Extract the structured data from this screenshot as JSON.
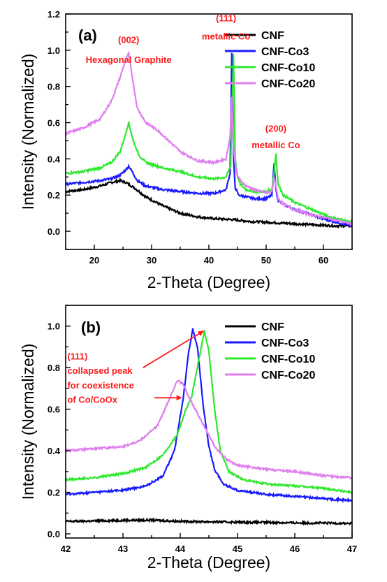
{
  "chart_data": [
    {
      "type": "line",
      "panel_label": "(a)",
      "xlabel": "2-Theta (Degree)",
      "ylabel": "Intensity (Normalized)",
      "xlim": [
        15,
        65
      ],
      "ylim": [
        -0.1,
        1.2
      ],
      "xticks": [
        20,
        30,
        40,
        50,
        60
      ],
      "yticks": [
        0.0,
        0.2,
        0.4,
        0.6,
        0.8,
        1.0,
        1.2
      ],
      "legend_position": "top-right",
      "annotations": [
        {
          "text": "(002)",
          "x": 26.0,
          "y": 1.04
        },
        {
          "text": "Hexagonal Graphite",
          "x": 26.0,
          "y": 0.93
        },
        {
          "text": "(111)",
          "x": 43.0,
          "y": 1.16
        },
        {
          "text": "metallic Co",
          "x": 43.0,
          "y": 1.06
        },
        {
          "text": "(200)",
          "x": 51.7,
          "y": 0.55
        },
        {
          "text": "metallic Co",
          "x": 51.7,
          "y": 0.46
        }
      ],
      "series": [
        {
          "name": "CNF",
          "color": "#000000",
          "x": [
            15,
            18,
            21,
            23,
            24.5,
            25.5,
            27,
            29,
            32,
            35,
            38,
            41,
            44,
            47,
            50,
            53,
            56,
            59,
            62,
            65
          ],
          "y": [
            0.22,
            0.23,
            0.25,
            0.27,
            0.28,
            0.27,
            0.24,
            0.19,
            0.14,
            0.1,
            0.08,
            0.07,
            0.065,
            0.055,
            0.05,
            0.045,
            0.04,
            0.035,
            0.03,
            0.03
          ]
        },
        {
          "name": "CNF-Co3",
          "color": "#1a1aff",
          "x": [
            15,
            18,
            21,
            23,
            24.5,
            25.5,
            26,
            26.6,
            27.5,
            29,
            32,
            35,
            38,
            41,
            43,
            43.7,
            44.0,
            44.3,
            44.6,
            45.2,
            46.5,
            48,
            50,
            51.0,
            51.4,
            51.7,
            52.1,
            53,
            55,
            58,
            61,
            65
          ],
          "y": [
            0.26,
            0.27,
            0.28,
            0.29,
            0.31,
            0.34,
            0.36,
            0.33,
            0.28,
            0.25,
            0.23,
            0.22,
            0.21,
            0.21,
            0.23,
            0.32,
            0.99,
            0.4,
            0.24,
            0.2,
            0.19,
            0.18,
            0.18,
            0.2,
            0.38,
            0.23,
            0.17,
            0.15,
            0.12,
            0.09,
            0.06,
            0.03
          ]
        },
        {
          "name": "CNF-Co10",
          "color": "#2ee82e",
          "x": [
            15,
            18,
            21,
            23,
            24.5,
            25.3,
            26,
            26.8,
            27.8,
            29,
            32,
            35,
            38,
            41,
            43,
            43.8,
            44.3,
            44.6,
            45,
            45.5,
            46.5,
            48,
            50,
            51.0,
            51.4,
            51.7,
            52.1,
            53,
            55,
            58,
            61,
            65
          ],
          "y": [
            0.32,
            0.33,
            0.35,
            0.38,
            0.44,
            0.52,
            0.6,
            0.5,
            0.42,
            0.38,
            0.35,
            0.33,
            0.3,
            0.29,
            0.3,
            0.36,
            0.98,
            0.4,
            0.3,
            0.26,
            0.23,
            0.22,
            0.22,
            0.23,
            0.33,
            0.43,
            0.26,
            0.2,
            0.16,
            0.12,
            0.08,
            0.05
          ]
        },
        {
          "name": "CNF-Co20",
          "color": "#e07ef0",
          "x": [
            15,
            18,
            21,
            23,
            24.5,
            25.5,
            26,
            26.6,
            27.5,
            29,
            31,
            33,
            35,
            38,
            41,
            43,
            43.7,
            44.0,
            44.3,
            44.8,
            45.5,
            46.5,
            48,
            50,
            51.0,
            51.4,
            51.7,
            52.1,
            53,
            55,
            58,
            61,
            65
          ],
          "y": [
            0.54,
            0.57,
            0.62,
            0.72,
            0.85,
            0.95,
            0.98,
            0.86,
            0.68,
            0.6,
            0.56,
            0.5,
            0.44,
            0.39,
            0.38,
            0.4,
            0.52,
            0.74,
            0.46,
            0.32,
            0.28,
            0.25,
            0.23,
            0.21,
            0.22,
            0.3,
            0.25,
            0.18,
            0.15,
            0.12,
            0.09,
            0.07,
            0.04
          ]
        }
      ]
    },
    {
      "type": "line",
      "panel_label": "(b)",
      "xlabel": "2-Theta (Degree)",
      "ylabel": "Intensity (Normalized)",
      "xlim": [
        42,
        47
      ],
      "ylim": [
        -0.02,
        1.1
      ],
      "xticks": [
        42,
        43,
        44,
        45,
        46,
        47
      ],
      "yticks": [
        0.0,
        0.2,
        0.4,
        0.6,
        0.8,
        1.0
      ],
      "legend_position": "top-right",
      "annotations": [
        {
          "text": "(111)",
          "x": 42.03,
          "y": 0.84
        },
        {
          "text": "collapsed peak",
          "x": 42.03,
          "y": 0.77
        },
        {
          "text": "for coexistence",
          "x": 42.03,
          "y": 0.7
        },
        {
          "text": "of Co/CoOx",
          "x": 42.03,
          "y": 0.63
        }
      ],
      "arrows": [
        {
          "from": [
            43.35,
            0.8
          ],
          "to": [
            44.4,
            0.975
          ]
        },
        {
          "from": [
            43.55,
            0.655
          ],
          "to": [
            44.02,
            0.655
          ]
        }
      ],
      "series": [
        {
          "name": "CNF",
          "color": "#000000",
          "x": [
            42,
            42.5,
            43,
            43.5,
            44,
            44.5,
            45,
            45.5,
            46,
            46.5,
            47
          ],
          "y": [
            0.06,
            0.062,
            0.065,
            0.066,
            0.06,
            0.058,
            0.056,
            0.055,
            0.053,
            0.052,
            0.05
          ]
        },
        {
          "name": "CNF-Co3",
          "color": "#1a1aff",
          "x": [
            42,
            42.5,
            43,
            43.4,
            43.7,
            43.9,
            44.05,
            44.15,
            44.22,
            44.3,
            44.4,
            44.5,
            44.6,
            44.75,
            45,
            45.5,
            46,
            46.5,
            47
          ],
          "y": [
            0.19,
            0.2,
            0.21,
            0.23,
            0.28,
            0.4,
            0.65,
            0.88,
            0.985,
            0.9,
            0.62,
            0.42,
            0.31,
            0.24,
            0.21,
            0.19,
            0.18,
            0.17,
            0.16
          ]
        },
        {
          "name": "CNF-Co10",
          "color": "#2ee82e",
          "x": [
            42,
            42.5,
            43,
            43.4,
            43.7,
            43.95,
            44.1,
            44.2,
            44.3,
            44.42,
            44.5,
            44.6,
            44.7,
            44.85,
            45.1,
            45.5,
            46,
            46.5,
            47
          ],
          "y": [
            0.26,
            0.27,
            0.29,
            0.32,
            0.38,
            0.48,
            0.6,
            0.66,
            0.8,
            0.975,
            0.88,
            0.6,
            0.4,
            0.3,
            0.26,
            0.24,
            0.23,
            0.22,
            0.2
          ]
        },
        {
          "name": "CNF-Co20",
          "color": "#e07ef0",
          "x": [
            42,
            42.5,
            43,
            43.3,
            43.6,
            43.8,
            43.95,
            44.05,
            44.15,
            44.3,
            44.45,
            44.6,
            44.8,
            45,
            45.5,
            46,
            46.5,
            47
          ],
          "y": [
            0.4,
            0.41,
            0.42,
            0.45,
            0.52,
            0.64,
            0.74,
            0.72,
            0.66,
            0.58,
            0.5,
            0.42,
            0.36,
            0.33,
            0.31,
            0.3,
            0.28,
            0.27
          ]
        }
      ]
    }
  ]
}
